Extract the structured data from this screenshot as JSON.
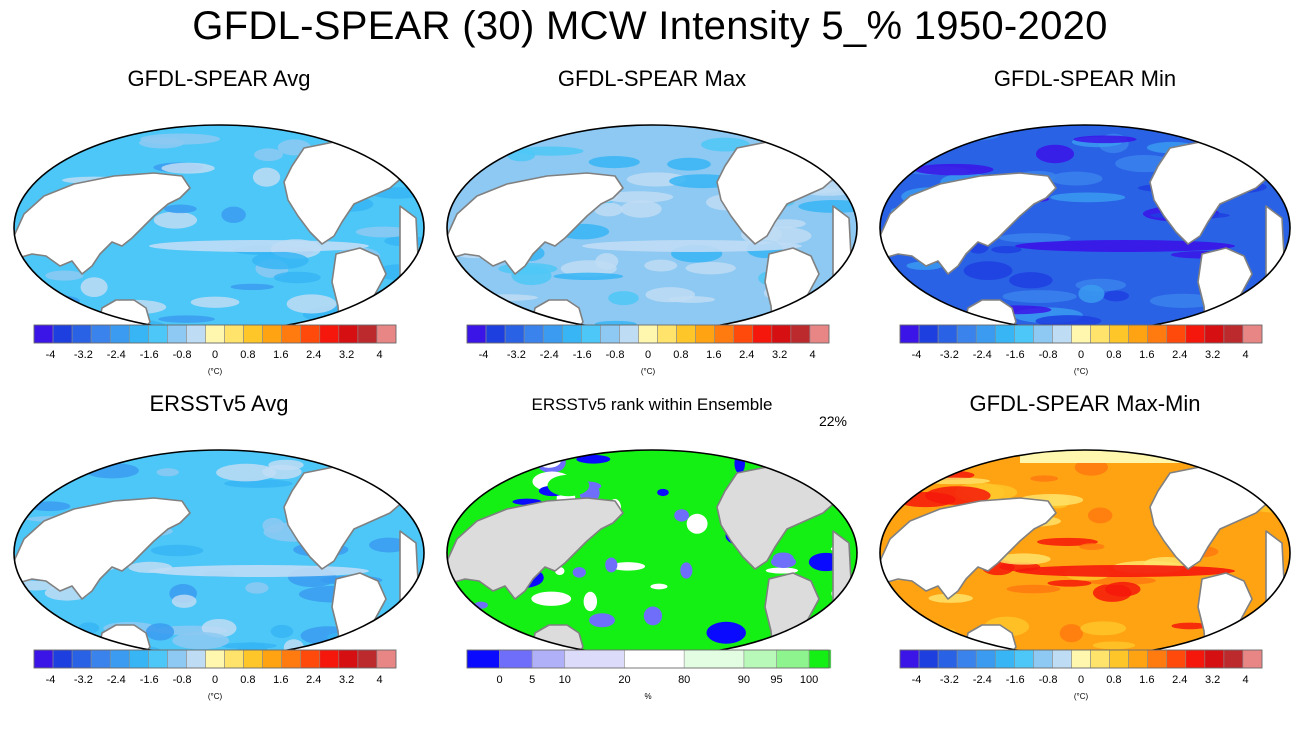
{
  "figure": {
    "title": "GFDL-SPEAR (30) MCW Intensity 5_% 1950-2020"
  },
  "colors": {
    "diverging": [
      "#3b14e8",
      "#1d3fe0",
      "#2a62e6",
      "#3a82ec",
      "#3a9bf0",
      "#37b5f5",
      "#4dc7f7",
      "#8dc9f2",
      "#bfdcf5",
      "#fff7ae",
      "#ffe36a",
      "#ffc62a",
      "#ffa313",
      "#ff7a0f",
      "#ff4a0b",
      "#f5170b",
      "#d60f12",
      "#bd2a2e",
      "#e88585"
    ],
    "rank": [
      "#0a0aff",
      "#6e6efa",
      "#b0b0f8",
      "#dcdcfa",
      "#ffffff",
      "#e2fde2",
      "#b8f8b8",
      "#8ef58e",
      "#14f014"
    ],
    "land": "#ffffff",
    "land_gray": "#dcdcdc",
    "coast": "#808080"
  },
  "chart_data": [
    {
      "type": "heatmap",
      "id": "avg",
      "title": "GFDL-SPEAR Avg",
      "colorbar": {
        "ticks": [
          "-4",
          "-3.2",
          "-2.4",
          "-1.6",
          "-0.8",
          "0",
          "0.8",
          "1.6",
          "2.4",
          "3.2",
          "4"
        ],
        "unit": "(°C)",
        "range": [
          -4.4,
          4.4
        ]
      },
      "field_summary": "Mostly light-blue negative intensities (about -0.8 to -1.6 °C) with darker equatorial band and Kuroshio/N. Atlantic extremes"
    },
    {
      "type": "heatmap",
      "id": "max",
      "title": "GFDL-SPEAR Max",
      "colorbar": {
        "ticks": [
          "-4",
          "-3.2",
          "-2.4",
          "-1.6",
          "-0.8",
          "0",
          "0.8",
          "1.6",
          "2.4",
          "3.2",
          "4"
        ],
        "unit": "(°C)",
        "range": [
          -4.4,
          4.4
        ]
      },
      "field_summary": "Weakest intensities, pale blue (about -0.4 to -1.2 °C)"
    },
    {
      "type": "heatmap",
      "id": "min",
      "title": "GFDL-SPEAR Min",
      "colorbar": {
        "ticks": [
          "-4",
          "-3.2",
          "-2.4",
          "-1.6",
          "-0.8",
          "0",
          "0.8",
          "1.6",
          "2.4",
          "3.2",
          "4"
        ],
        "unit": "(°C)",
        "range": [
          -4.4,
          4.4
        ]
      },
      "field_summary": "Strongest intensities, deep blue (about -2.4 to -4 °C)"
    },
    {
      "type": "heatmap",
      "id": "obs",
      "title": "ERSSTv5 Avg",
      "colorbar": {
        "ticks": [
          "-4",
          "-3.2",
          "-2.4",
          "-1.6",
          "-0.8",
          "0",
          "0.8",
          "1.6",
          "2.4",
          "3.2",
          "4"
        ],
        "unit": "(°C)",
        "range": [
          -4.4,
          4.4
        ]
      },
      "field_summary": "Light blue (about -0.8 to -1.6 °C), similar to ensemble average"
    },
    {
      "type": "heatmap",
      "id": "rank",
      "title": "ERSSTv5 rank within Ensemble",
      "annotation": "22%",
      "colorbar": {
        "ticks": [
          "0",
          "5",
          "10",
          "20",
          "80",
          "90",
          "95",
          "100"
        ],
        "unit": "%",
        "boundaries": [
          0,
          5,
          10,
          20,
          80,
          90,
          95,
          100
        ]
      },
      "field_summary": "Mostly bright green (95-100) with blue (0-5) patches and white (20-80) regions; gray land"
    },
    {
      "type": "heatmap",
      "id": "spread",
      "title": "GFDL-SPEAR Max-Min",
      "colorbar": {
        "ticks": [
          "-4",
          "-3.2",
          "-2.4",
          "-1.6",
          "-0.8",
          "0",
          "0.8",
          "1.6",
          "2.4",
          "3.2",
          "4"
        ],
        "unit": "(°C)",
        "range": [
          -4.4,
          4.4
        ]
      },
      "field_summary": "Positive spread, orange to red (about 1.6 to 3.2 °C)"
    }
  ]
}
